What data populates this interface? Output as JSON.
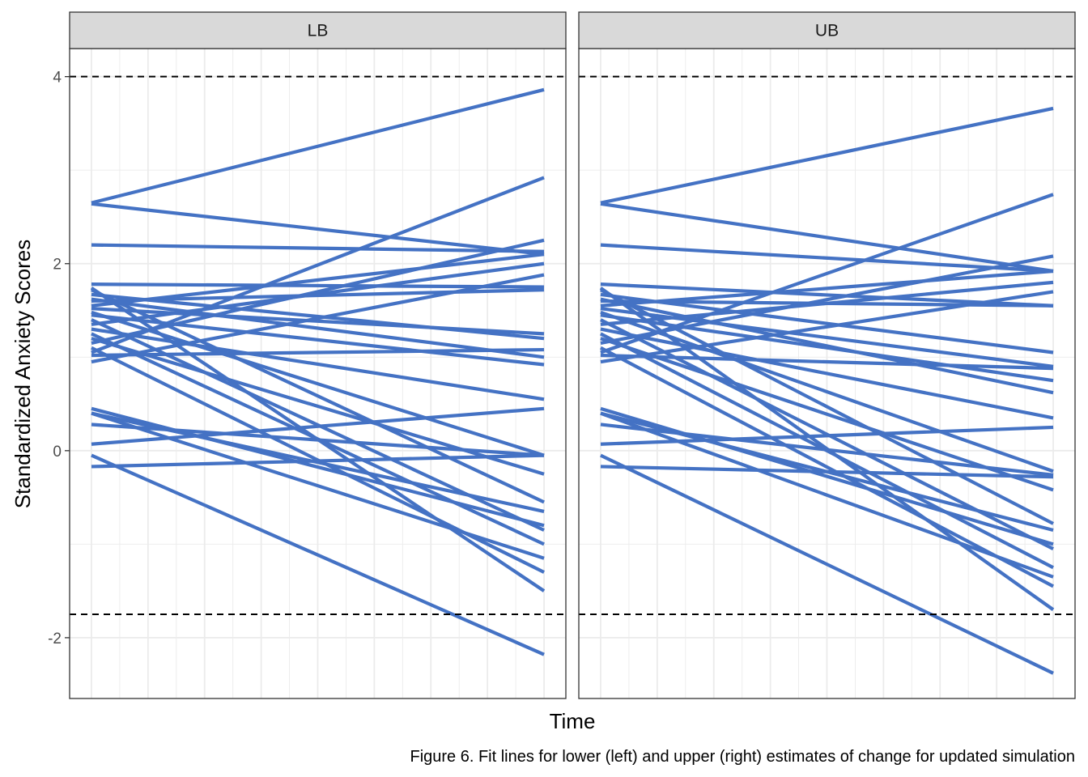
{
  "chart_data": {
    "type": "line",
    "xlabel": "Time",
    "ylabel": "Standardized Anxiety Scores",
    "caption": "Figure 6. Fit lines for lower (left) and upper (right) estimates of change for updated simulation",
    "x": [
      0,
      1
    ],
    "ylim": [
      -2.65,
      4.3
    ],
    "y_ticks": [
      4,
      2,
      0,
      -2
    ],
    "y_tick_labels": [
      "4",
      "2",
      "0",
      "-2"
    ],
    "x_ticks_shown": false,
    "grid": true,
    "line_color": "#4472C4",
    "reference_lines": [
      {
        "y": 4.0,
        "style": "dashed"
      },
      {
        "y": -1.75,
        "style": "dashed"
      }
    ],
    "panels": [
      {
        "label": "LB",
        "lines": [
          [
            2.65,
            3.86
          ],
          [
            2.64,
            2.1
          ],
          [
            2.2,
            2.13
          ],
          [
            1.78,
            1.75
          ],
          [
            1.72,
            -0.55
          ],
          [
            1.67,
            1.2
          ],
          [
            1.6,
            1.72
          ],
          [
            1.55,
            2.1
          ],
          [
            1.52,
            1.25
          ],
          [
            1.48,
            -0.05
          ],
          [
            1.45,
            0.92
          ],
          [
            1.4,
            -0.85
          ],
          [
            1.35,
            2.0
          ],
          [
            1.3,
            0.55
          ],
          [
            1.25,
            -1.0
          ],
          [
            1.2,
            -0.25
          ],
          [
            1.15,
            2.25
          ],
          [
            1.1,
            -1.3
          ],
          [
            1.05,
            2.92
          ],
          [
            1.02,
            1.08
          ],
          [
            0.95,
            1.88
          ],
          [
            0.45,
            -0.8
          ],
          [
            0.4,
            -0.65
          ],
          [
            0.4,
            -1.15
          ],
          [
            0.28,
            -0.05
          ],
          [
            0.07,
            0.45
          ],
          [
            -0.05,
            -2.18
          ],
          [
            -0.17,
            -0.05
          ],
          [
            1.74,
            -1.5
          ],
          [
            1.62,
            1.0
          ]
        ]
      },
      {
        "label": "UB",
        "lines": [
          [
            2.65,
            3.66
          ],
          [
            2.64,
            1.92
          ],
          [
            2.2,
            1.92
          ],
          [
            1.78,
            1.55
          ],
          [
            1.72,
            -0.78
          ],
          [
            1.67,
            1.05
          ],
          [
            1.6,
            1.55
          ],
          [
            1.55,
            1.92
          ],
          [
            1.52,
            0.9
          ],
          [
            1.48,
            -0.22
          ],
          [
            1.45,
            0.75
          ],
          [
            1.4,
            -1.05
          ],
          [
            1.35,
            1.8
          ],
          [
            1.3,
            0.35
          ],
          [
            1.25,
            -1.25
          ],
          [
            1.2,
            -0.42
          ],
          [
            1.15,
            2.08
          ],
          [
            1.1,
            -1.45
          ],
          [
            1.05,
            2.74
          ],
          [
            1.02,
            0.88
          ],
          [
            0.95,
            1.7
          ],
          [
            0.45,
            -1.0
          ],
          [
            0.4,
            -0.85
          ],
          [
            0.4,
            -1.35
          ],
          [
            0.28,
            -0.26
          ],
          [
            0.07,
            0.25
          ],
          [
            -0.05,
            -2.38
          ],
          [
            -0.17,
            -0.28
          ],
          [
            1.74,
            -1.7
          ],
          [
            1.62,
            0.62
          ]
        ]
      }
    ]
  }
}
